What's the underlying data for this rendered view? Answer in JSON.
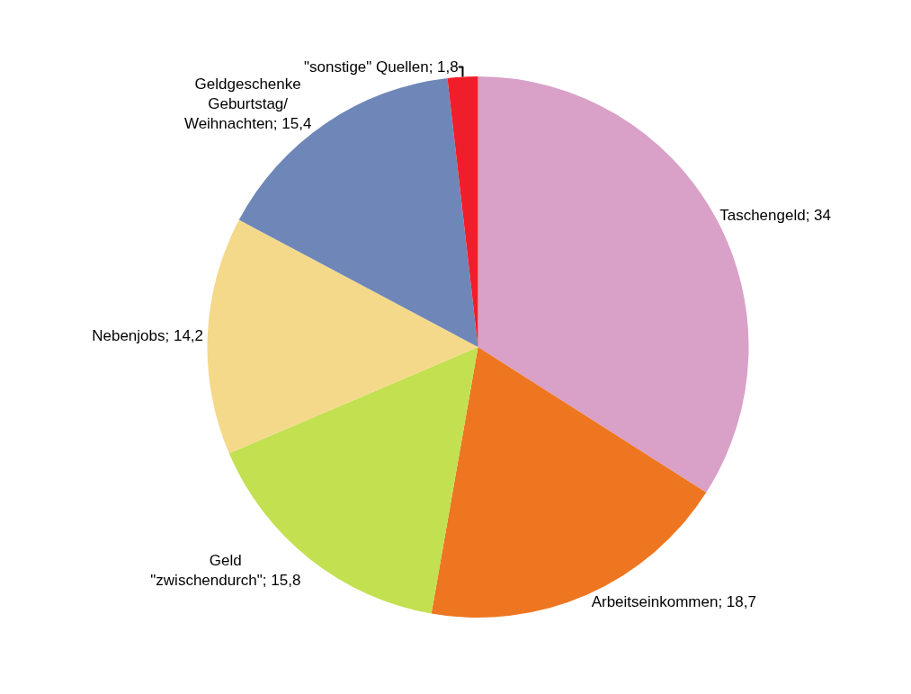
{
  "chart_data": {
    "type": "pie",
    "categories": [
      "Taschengeld",
      "Arbeitseinkommen",
      "Geld \"zwischendurch\"",
      "Nebenjobs",
      "Geldgeschenke Geburtstag/Weihnachten",
      "\"sonstige\" Quellen"
    ],
    "values": [
      34,
      18.7,
      15.8,
      14.2,
      15.4,
      1.8
    ],
    "value_labels": [
      "34",
      "18,7",
      "15,8",
      "14,2",
      "15,4",
      "1,8"
    ],
    "colors": [
      "#d9a0c8",
      "#ee7621",
      "#c3e051",
      "#f5d98a",
      "#6e87b8",
      "#f01e2a"
    ],
    "legend": false
  }
}
